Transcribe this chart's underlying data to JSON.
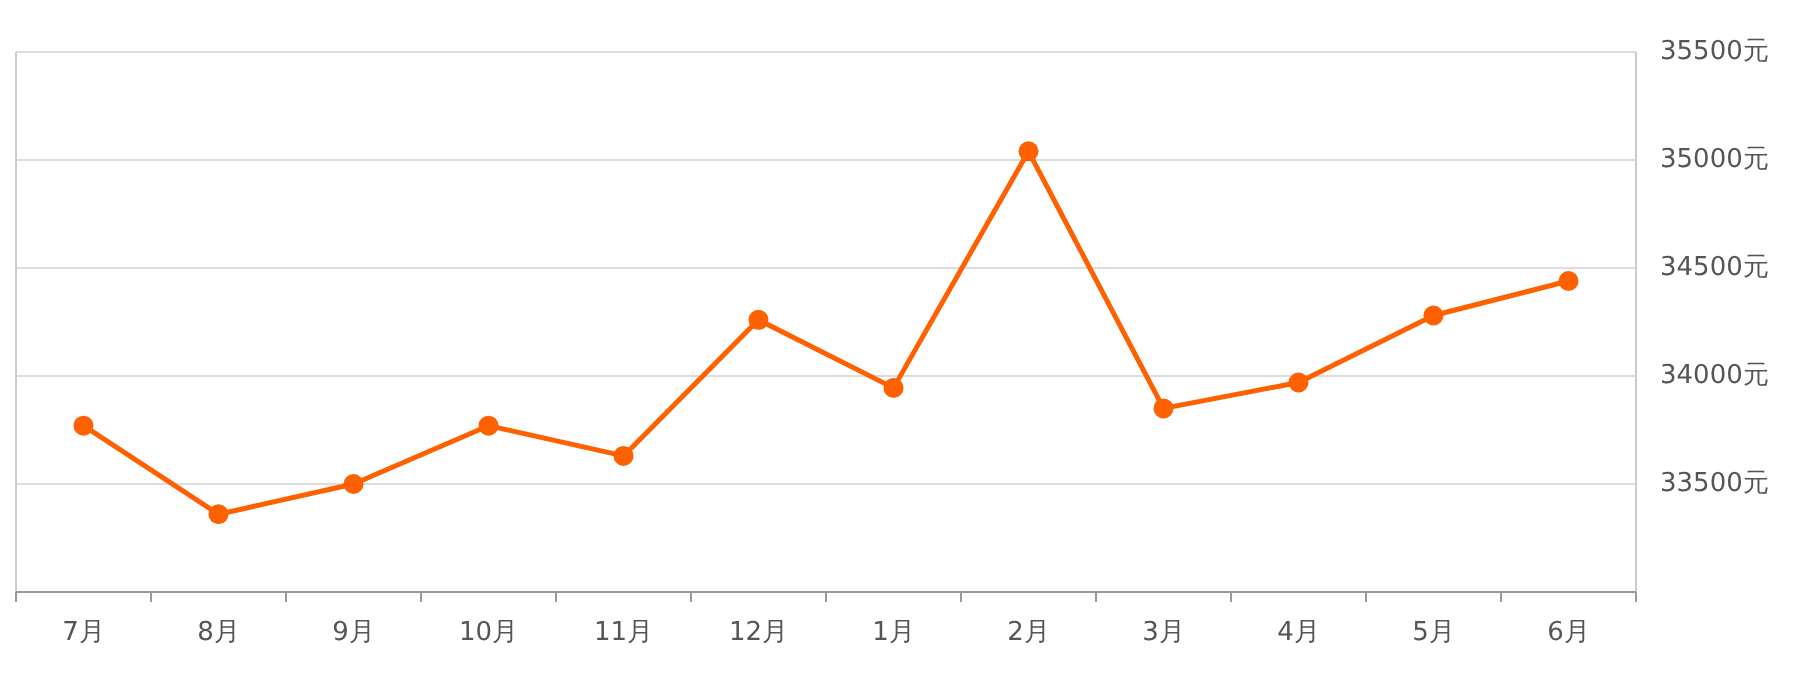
{
  "chart_data": {
    "type": "line",
    "categories": [
      "7月",
      "8月",
      "9月",
      "10月",
      "11月",
      "12月",
      "1月",
      "2月",
      "3月",
      "4月",
      "5月",
      "6月"
    ],
    "series": [
      {
        "color": "#ff6000",
        "values": [
          33770,
          33360,
          33500,
          33770,
          33630,
          34260,
          33945,
          35040,
          33850,
          33970,
          34280,
          34440
        ]
      }
    ],
    "ylim": [
      33000,
      35500
    ],
    "yticks": [
      {
        "value": 33500,
        "label": "33500元"
      },
      {
        "value": 34000,
        "label": "34000元"
      },
      {
        "value": 34500,
        "label": "34500元"
      },
      {
        "value": 35000,
        "label": "35000元"
      },
      {
        "value": 35500,
        "label": "35500元"
      }
    ],
    "grid": "y",
    "marker": "circle",
    "line_style": "solid"
  }
}
